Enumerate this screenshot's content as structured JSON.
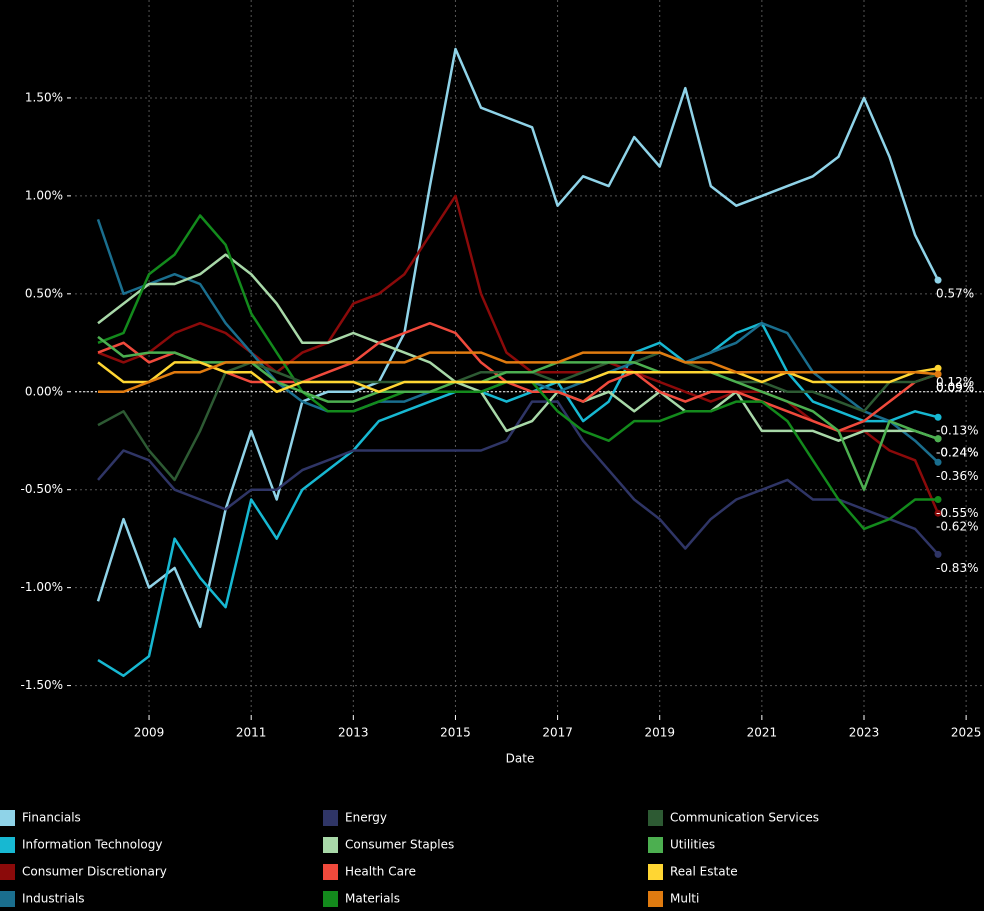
{
  "chart_data": {
    "type": "line",
    "x_label": "Date",
    "grid": true,
    "legend": "bottom",
    "xlim": [
      2007.55,
      2025.35
    ],
    "xticks": [
      2009,
      2011,
      2013,
      2015,
      2017,
      2019,
      2021,
      2023,
      2025
    ],
    "ylim": [
      -1.64,
      2.0
    ],
    "yticks": [
      {
        "value": -1.5,
        "label": "-1.50%"
      },
      {
        "value": -1.0,
        "label": "-1.00%"
      },
      {
        "value": -0.5,
        "label": "-0.50%"
      },
      {
        "value": 0,
        "label": "0.00%"
      },
      {
        "value": 0.5,
        "label": "0.50%"
      },
      {
        "value": 1.0,
        "label": "1.00%"
      },
      {
        "value": 1.5,
        "label": "1.50%"
      }
    ],
    "x": [
      2008,
      2008.5,
      2009,
      2009.5,
      2010,
      2010.5,
      2011,
      2011.5,
      2012,
      2012.5,
      2013,
      2013.5,
      2014,
      2014.5,
      2015,
      2015.5,
      2016,
      2016.5,
      2017,
      2017.5,
      2018,
      2018.5,
      2019,
      2019.5,
      2020,
      2020.5,
      2021,
      2021.5,
      2022,
      2022.5,
      2023,
      2023.5,
      2024,
      2024.45
    ],
    "series": [
      {
        "name": "Financials",
        "color": "#8fd3e8",
        "values": [
          -1.07,
          -0.65,
          -1.0,
          -0.9,
          -1.2,
          -0.6,
          -0.2,
          -0.55,
          -0.05,
          0.0,
          0.0,
          0.05,
          0.3,
          1.05,
          1.75,
          1.45,
          1.4,
          1.35,
          0.95,
          1.1,
          1.05,
          1.3,
          1.15,
          1.55,
          1.05,
          0.95,
          1.0,
          1.05,
          1.1,
          1.2,
          1.5,
          1.2,
          0.8,
          0.57
        ],
        "value_labels": [
          null,
          null,
          null,
          null,
          null,
          null,
          null,
          null,
          null,
          null,
          null,
          null,
          null,
          null,
          null,
          null,
          null,
          null,
          null,
          null,
          null,
          null,
          null,
          null,
          null,
          null,
          null,
          null,
          null,
          null,
          null,
          null,
          null,
          "0.57%"
        ]
      },
      {
        "name": "Information Technology",
        "color": "#17b8d2",
        "values": [
          -1.37,
          -1.45,
          -1.35,
          -0.75,
          -0.95,
          -1.1,
          -0.55,
          -0.75,
          -0.5,
          -0.4,
          -0.3,
          -0.15,
          -0.1,
          -0.05,
          0.0,
          0.0,
          -0.05,
          0.0,
          0.05,
          -0.15,
          -0.05,
          0.2,
          0.25,
          0.15,
          0.2,
          0.3,
          0.35,
          0.1,
          -0.05,
          -0.1,
          -0.15,
          -0.15,
          -0.1,
          -0.13
        ],
        "value_labels": [
          null,
          null,
          null,
          null,
          null,
          null,
          null,
          null,
          null,
          null,
          null,
          null,
          null,
          null,
          null,
          null,
          null,
          null,
          null,
          null,
          null,
          null,
          null,
          null,
          null,
          null,
          null,
          null,
          null,
          null,
          null,
          null,
          null,
          "-0.13%"
        ]
      },
      {
        "name": "Consumer Discretionary",
        "color": "#8b0a0a",
        "values": [
          0.2,
          0.15,
          0.2,
          0.3,
          0.35,
          0.3,
          0.2,
          0.1,
          0.2,
          0.25,
          0.45,
          0.5,
          0.6,
          0.8,
          1.0,
          0.5,
          0.2,
          0.1,
          0.1,
          0.1,
          0.15,
          0.1,
          0.05,
          0.0,
          -0.05,
          0.0,
          0.0,
          -0.05,
          -0.15,
          -0.2,
          -0.2,
          -0.3,
          -0.35,
          -0.62
        ],
        "value_labels": [
          null,
          null,
          null,
          null,
          null,
          null,
          null,
          null,
          null,
          null,
          null,
          null,
          null,
          null,
          null,
          null,
          null,
          null,
          null,
          null,
          null,
          null,
          null,
          null,
          null,
          null,
          null,
          null,
          null,
          null,
          null,
          null,
          null,
          "-0.62%"
        ]
      },
      {
        "name": "Industrials",
        "color": "#1a6e8e",
        "values": [
          0.88,
          0.5,
          0.55,
          0.6,
          0.55,
          0.35,
          0.2,
          0.05,
          -0.05,
          -0.1,
          -0.1,
          -0.05,
          -0.05,
          0.0,
          0.0,
          0.0,
          0.05,
          0.05,
          0.0,
          0.05,
          0.1,
          0.15,
          0.2,
          0.15,
          0.2,
          0.25,
          0.35,
          0.3,
          0.1,
          0.0,
          -0.1,
          -0.15,
          -0.25,
          -0.36
        ],
        "value_labels": [
          null,
          null,
          null,
          null,
          null,
          null,
          null,
          null,
          null,
          null,
          null,
          null,
          null,
          null,
          null,
          null,
          null,
          null,
          null,
          null,
          null,
          null,
          null,
          null,
          null,
          null,
          null,
          null,
          null,
          null,
          null,
          null,
          null,
          "-0.36%"
        ]
      },
      {
        "name": "Energy",
        "color": "#2f3566",
        "values": [
          -0.45,
          -0.3,
          -0.35,
          -0.5,
          -0.55,
          -0.6,
          -0.5,
          -0.5,
          -0.4,
          -0.35,
          -0.3,
          -0.3,
          -0.3,
          -0.3,
          -0.3,
          -0.3,
          -0.25,
          -0.05,
          -0.05,
          -0.25,
          -0.4,
          -0.55,
          -0.65,
          -0.8,
          -0.65,
          -0.55,
          -0.5,
          -0.45,
          -0.55,
          -0.55,
          -0.6,
          -0.65,
          -0.7,
          -0.83
        ],
        "value_labels": [
          null,
          null,
          null,
          null,
          null,
          null,
          null,
          null,
          null,
          null,
          null,
          null,
          null,
          null,
          null,
          null,
          null,
          null,
          null,
          null,
          null,
          null,
          null,
          null,
          null,
          null,
          null,
          null,
          null,
          null,
          null,
          null,
          null,
          "-0.83%"
        ]
      },
      {
        "name": "Consumer Staples",
        "color": "#a8d8a8",
        "values": [
          0.35,
          0.45,
          0.55,
          0.55,
          0.6,
          0.7,
          0.6,
          0.45,
          0.25,
          0.25,
          0.3,
          0.25,
          0.2,
          0.15,
          0.05,
          0.0,
          -0.2,
          -0.15,
          0.0,
          -0.05,
          0.0,
          -0.1,
          0.0,
          -0.1,
          -0.1,
          0.0,
          -0.2,
          -0.2,
          -0.2,
          -0.25,
          -0.2,
          -0.2,
          -0.2,
          -0.24
        ],
        "value_labels": [
          null,
          null,
          null,
          null,
          null,
          null,
          null,
          null,
          null,
          null,
          null,
          null,
          null,
          null,
          null,
          null,
          null,
          null,
          null,
          null,
          null,
          null,
          null,
          null,
          null,
          null,
          null,
          null,
          null,
          null,
          null,
          null,
          null,
          "-0.24%"
        ]
      },
      {
        "name": "Health Care",
        "color": "#f04a3c",
        "values": [
          0.2,
          0.25,
          0.15,
          0.2,
          0.15,
          0.1,
          0.05,
          0.05,
          0.05,
          0.1,
          0.15,
          0.25,
          0.3,
          0.35,
          0.3,
          0.15,
          0.05,
          0.0,
          0.0,
          -0.05,
          0.05,
          0.1,
          0.0,
          -0.05,
          0.0,
          0.0,
          -0.05,
          -0.1,
          -0.15,
          -0.2,
          -0.15,
          -0.05,
          0.05,
          0.09
        ],
        "value_labels": [
          null,
          null,
          null,
          null,
          null,
          null,
          null,
          null,
          null,
          null,
          null,
          null,
          null,
          null,
          null,
          null,
          null,
          null,
          null,
          null,
          null,
          null,
          null,
          null,
          null,
          null,
          null,
          null,
          null,
          null,
          null,
          null,
          null,
          "0.09%"
        ]
      },
      {
        "name": "Materials",
        "color": "#138a1c",
        "values": [
          0.25,
          0.3,
          0.6,
          0.7,
          0.9,
          0.75,
          0.4,
          0.2,
          0.0,
          -0.1,
          -0.1,
          -0.05,
          0.0,
          0.0,
          0.0,
          0.0,
          0.05,
          0.05,
          -0.1,
          -0.2,
          -0.25,
          -0.15,
          -0.15,
          -0.1,
          -0.1,
          -0.05,
          -0.05,
          -0.15,
          -0.35,
          -0.55,
          -0.7,
          -0.65,
          -0.55,
          -0.55
        ],
        "value_labels": [
          null,
          null,
          null,
          null,
          null,
          null,
          null,
          null,
          null,
          null,
          null,
          null,
          null,
          null,
          null,
          null,
          null,
          null,
          null,
          null,
          null,
          null,
          null,
          null,
          null,
          null,
          null,
          null,
          null,
          null,
          null,
          null,
          null,
          "-0.55%"
        ]
      },
      {
        "name": "Communication Services",
        "color": "#2d5a33",
        "values": [
          -0.17,
          -0.1,
          -0.3,
          -0.45,
          -0.2,
          0.1,
          0.15,
          0.1,
          0.05,
          0.05,
          0.05,
          0.05,
          0.05,
          0.05,
          0.05,
          0.1,
          0.1,
          0.1,
          0.05,
          0.1,
          0.15,
          0.15,
          0.2,
          0.15,
          0.1,
          0.05,
          0.05,
          0.0,
          0.0,
          -0.05,
          -0.1,
          0.05,
          0.05,
          0.09
        ],
        "value_labels": [
          null,
          null,
          null,
          null,
          null,
          null,
          null,
          null,
          null,
          null,
          null,
          null,
          null,
          null,
          null,
          null,
          null,
          null,
          null,
          null,
          null,
          null,
          null,
          null,
          null,
          null,
          null,
          null,
          null,
          null,
          null,
          null,
          null,
          "0.09%"
        ]
      },
      {
        "name": "Utilities",
        "color": "#4caf50",
        "values": [
          0.28,
          0.18,
          0.2,
          0.2,
          0.15,
          0.15,
          0.15,
          0.05,
          0.0,
          -0.05,
          -0.05,
          0.0,
          0.0,
          0.0,
          0.05,
          0.05,
          0.1,
          0.1,
          0.15,
          0.15,
          0.15,
          0.15,
          0.1,
          0.1,
          0.1,
          0.05,
          0.0,
          -0.05,
          -0.1,
          -0.2,
          -0.5,
          -0.15,
          -0.2,
          -0.24
        ],
        "value_labels": [
          null,
          null,
          null,
          null,
          null,
          null,
          null,
          null,
          null,
          null,
          null,
          null,
          null,
          null,
          null,
          null,
          null,
          null,
          null,
          null,
          null,
          null,
          null,
          null,
          null,
          null,
          null,
          null,
          null,
          null,
          null,
          null,
          null,
          "-0.24%"
        ]
      },
      {
        "name": "Real Estate",
        "color": "#ffd633",
        "values": [
          0.15,
          0.05,
          0.05,
          0.15,
          0.15,
          0.1,
          0.1,
          0.0,
          0.05,
          0.05,
          0.05,
          0.0,
          0.05,
          0.05,
          0.05,
          0.05,
          0.05,
          0.05,
          0.05,
          0.05,
          0.1,
          0.1,
          0.1,
          0.1,
          0.1,
          0.1,
          0.05,
          0.1,
          0.05,
          0.05,
          0.05,
          0.05,
          0.1,
          0.12
        ],
        "value_labels": [
          null,
          null,
          null,
          null,
          null,
          null,
          null,
          null,
          null,
          null,
          null,
          null,
          null,
          null,
          null,
          null,
          null,
          null,
          null,
          null,
          null,
          null,
          null,
          null,
          null,
          null,
          null,
          null,
          null,
          null,
          null,
          null,
          null,
          "0.12%"
        ]
      },
      {
        "name": "Multi",
        "color": "#e07b10",
        "values": [
          0.0,
          0.0,
          0.05,
          0.1,
          0.1,
          0.15,
          0.15,
          0.15,
          0.15,
          0.15,
          0.15,
          0.15,
          0.15,
          0.2,
          0.2,
          0.2,
          0.15,
          0.15,
          0.15,
          0.2,
          0.2,
          0.2,
          0.2,
          0.15,
          0.15,
          0.1,
          0.1,
          0.1,
          0.1,
          0.1,
          0.1,
          0.1,
          0.1,
          0.09
        ],
        "value_labels": [
          null,
          null,
          null,
          null,
          null,
          null,
          null,
          null,
          null,
          null,
          null,
          null,
          null,
          null,
          null,
          null,
          null,
          null,
          null,
          null,
          null,
          null,
          null,
          null,
          null,
          null,
          null,
          null,
          null,
          null,
          null,
          null,
          null,
          "0.09%"
        ]
      }
    ]
  }
}
